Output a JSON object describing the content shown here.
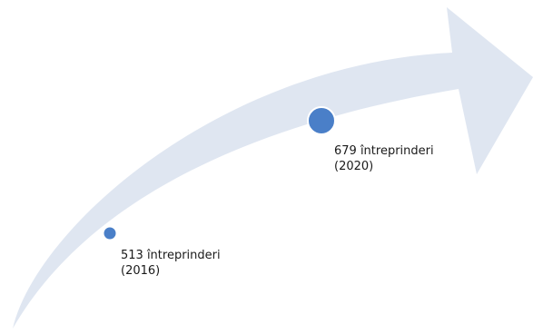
{
  "colors": {
    "arrow_fill": "#dfe6f1",
    "marker_fill": "#4a7fc8",
    "marker_stroke": "#ffffff",
    "text": "#1a1a1a"
  },
  "milestones": [
    {
      "value_line": "513 întreprinderi",
      "year_line": "(2016)"
    },
    {
      "value_line": "679 întreprinderi",
      "year_line": "(2020)"
    }
  ]
}
